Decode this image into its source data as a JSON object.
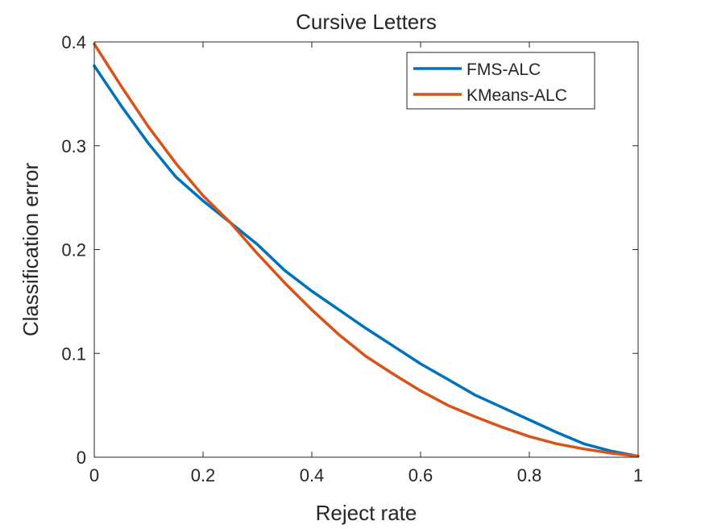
{
  "chart_data": {
    "type": "line",
    "title": "Cursive Letters",
    "xlabel": "Reject rate",
    "ylabel": "Classification error",
    "xlim": [
      0,
      1
    ],
    "ylim": [
      0,
      0.4
    ],
    "xticks": [
      "0",
      "0.2",
      "0.4",
      "0.6",
      "0.8",
      "1"
    ],
    "yticks": [
      "0",
      "0.1",
      "0.2",
      "0.3",
      "0.4"
    ],
    "grid": false,
    "legend_position": "top-right",
    "series": [
      {
        "name": "FMS-ALC",
        "color": "#0072BD",
        "x": [
          0,
          0.05,
          0.1,
          0.15,
          0.2,
          0.25,
          0.3,
          0.35,
          0.4,
          0.45,
          0.5,
          0.55,
          0.6,
          0.65,
          0.7,
          0.75,
          0.8,
          0.85,
          0.9,
          0.95,
          1.0
        ],
        "y": [
          0.377,
          0.338,
          0.302,
          0.27,
          0.247,
          0.226,
          0.205,
          0.18,
          0.16,
          0.142,
          0.124,
          0.107,
          0.09,
          0.075,
          0.06,
          0.048,
          0.036,
          0.024,
          0.013,
          0.006,
          0.001
        ]
      },
      {
        "name": "KMeans-ALC",
        "color": "#D95319",
        "x": [
          0,
          0.05,
          0.1,
          0.15,
          0.2,
          0.25,
          0.3,
          0.35,
          0.4,
          0.45,
          0.5,
          0.55,
          0.6,
          0.65,
          0.7,
          0.75,
          0.8,
          0.85,
          0.9,
          0.95,
          1.0
        ],
        "y": [
          0.398,
          0.357,
          0.318,
          0.283,
          0.252,
          0.226,
          0.196,
          0.168,
          0.142,
          0.118,
          0.097,
          0.08,
          0.064,
          0.05,
          0.039,
          0.029,
          0.02,
          0.013,
          0.008,
          0.004,
          0.001
        ]
      }
    ]
  }
}
